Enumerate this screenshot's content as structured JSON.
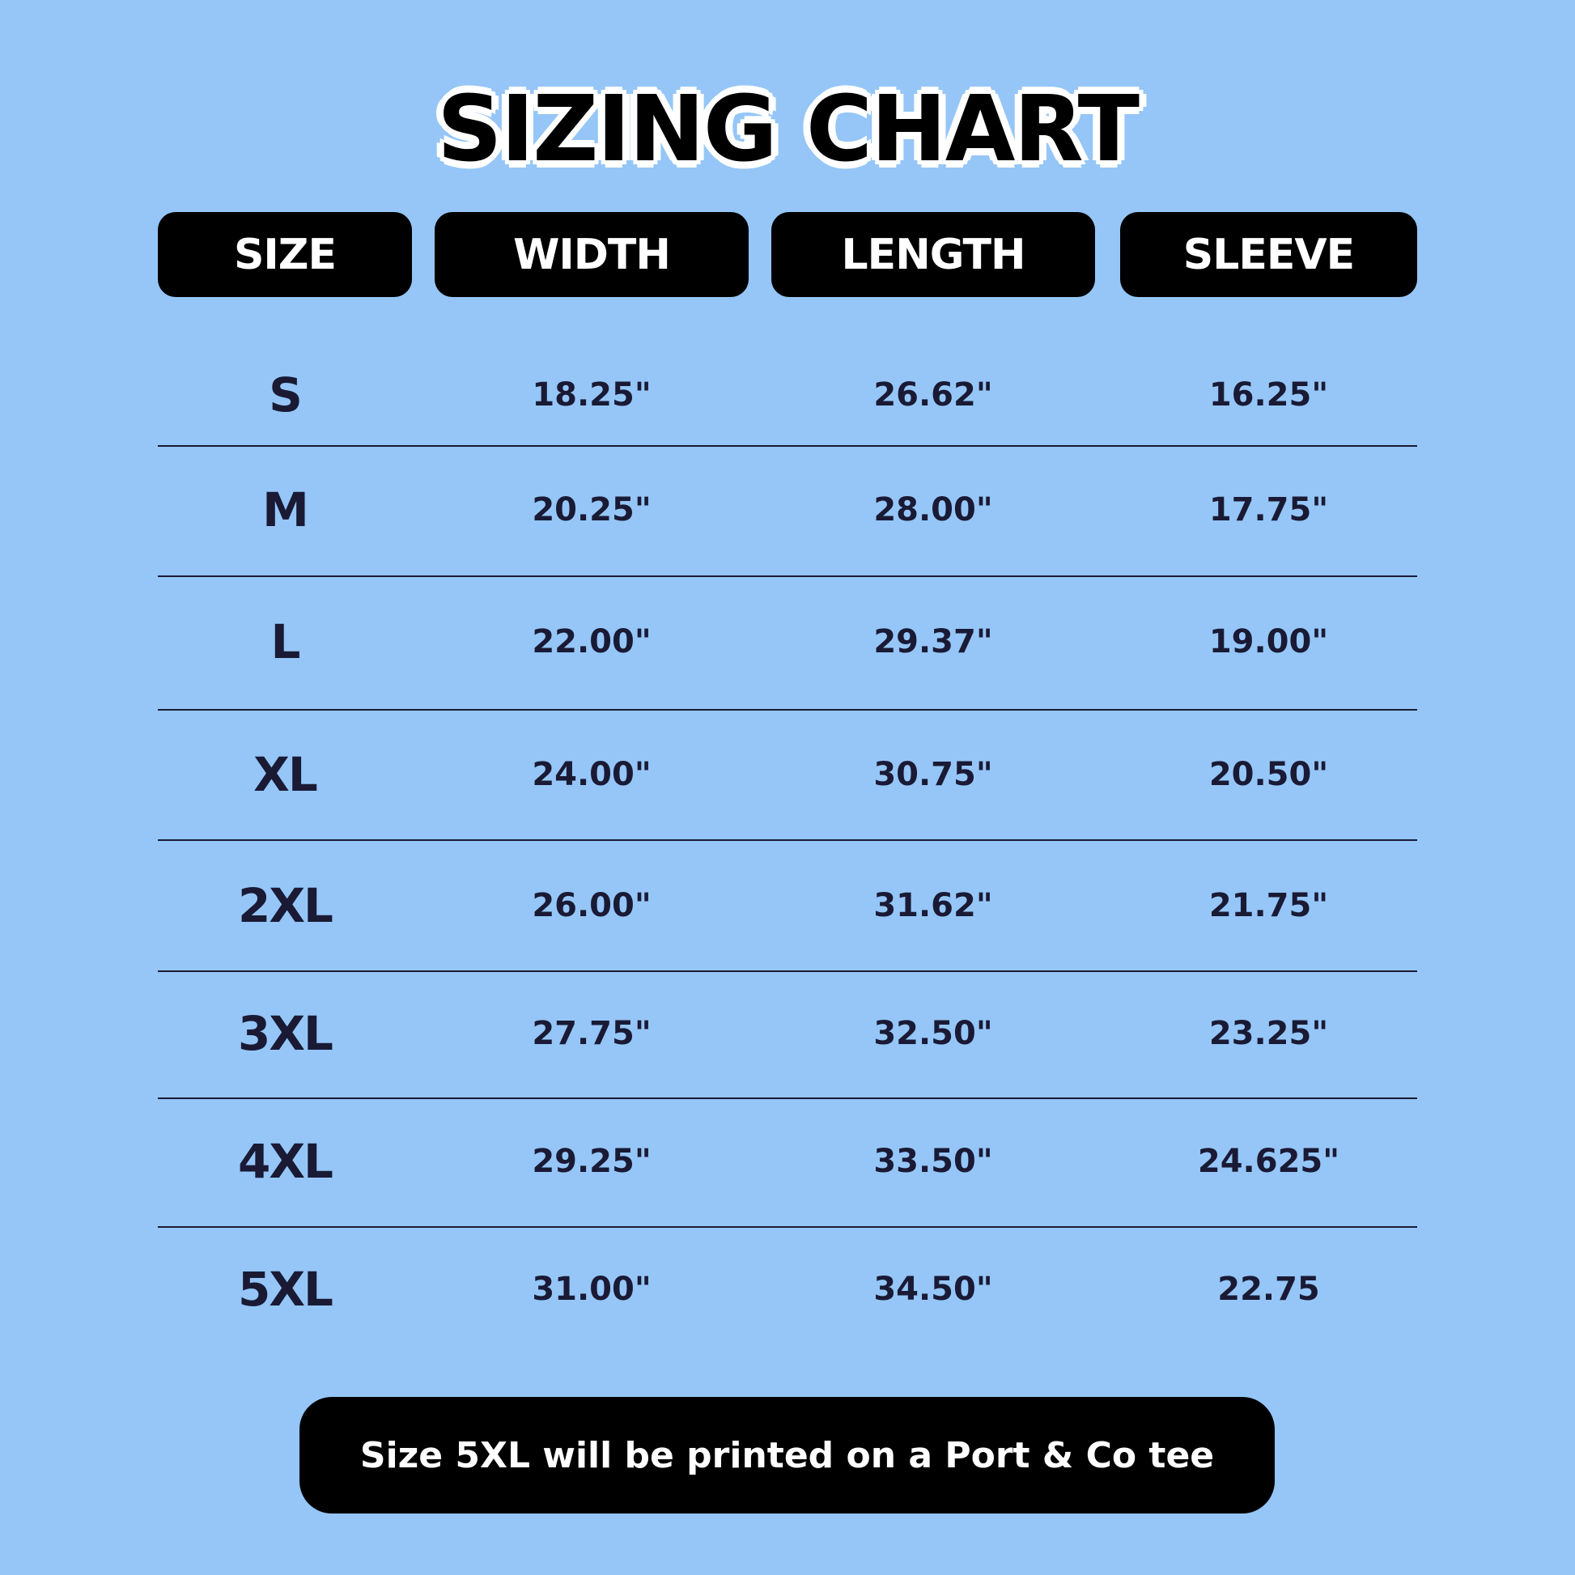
{
  "title": "SIZING CHART",
  "headers": [
    "SIZE",
    "WIDTH",
    "LENGTH",
    "SLEEVE"
  ],
  "rows": [
    [
      "S",
      "18.25\"",
      "26.62\"",
      "16.25\""
    ],
    [
      "M",
      "20.25\"",
      "28.00\"",
      "17.75\""
    ],
    [
      "L",
      "22.00\"",
      "29.37\"",
      "19.00\""
    ],
    [
      "XL",
      "24.00\"",
      "30.75\"",
      "20.50\""
    ],
    [
      "2XL",
      "26.00\"",
      "31.62\"",
      "21.75\""
    ],
    [
      "3XL",
      "27.75\"",
      "32.50\"",
      "23.25\""
    ],
    [
      "4XL",
      "29.25\"",
      "33.50\"",
      "24.625\""
    ],
    [
      "5XL",
      "31.00\"",
      "34.50\"",
      "22.75"
    ]
  ],
  "footer": "Size 5XL will be printed on a Port & Co tee",
  "colors": {
    "background": "#95c6f7",
    "header_bg": "#000000",
    "text": "#1a1a35"
  }
}
